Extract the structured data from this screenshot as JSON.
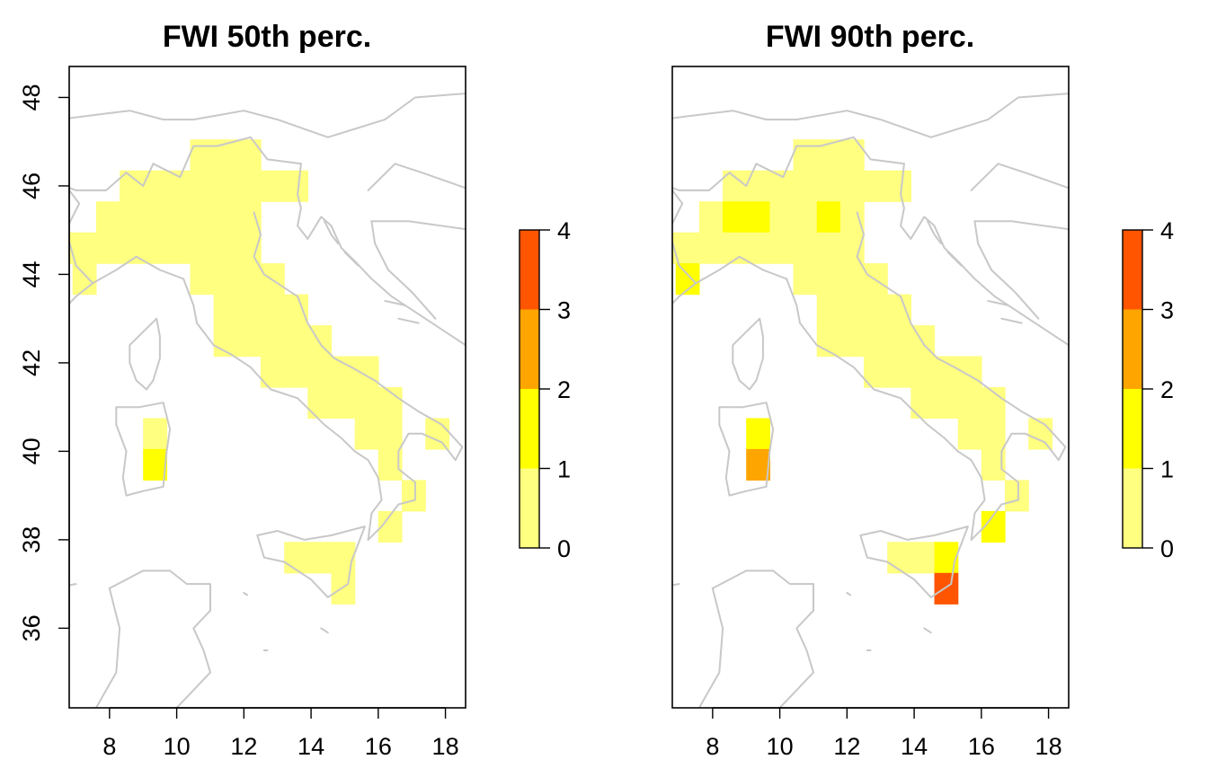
{
  "chart_data": [
    {
      "type": "heatmap",
      "title": "FWI 50th perc.",
      "xlabel": "",
      "ylabel": "",
      "x_ticks": [
        8,
        10,
        12,
        14,
        16,
        18
      ],
      "y_ticks": [
        36,
        38,
        40,
        42,
        44,
        46,
        48
      ],
      "xlim": [
        6.8,
        18.6
      ],
      "ylim": [
        34.2,
        48.7
      ],
      "grid": false,
      "legend": {
        "type": "colorbar",
        "position": "right",
        "breaks": [
          0,
          1,
          2,
          3,
          4
        ],
        "colors": [
          "#ffff80",
          "#ffff00",
          "#ffa500",
          "#ff5500"
        ]
      },
      "cell_size_deg": [
        0.7,
        0.7
      ],
      "cells": [
        [
          6.55,
          44.6,
          0
        ],
        [
          7.25,
          44.6,
          0
        ],
        [
          7.25,
          43.9,
          0
        ],
        [
          7.95,
          45.3,
          0
        ],
        [
          7.95,
          44.6,
          0
        ],
        [
          8.65,
          46.0,
          0
        ],
        [
          8.65,
          45.3,
          0
        ],
        [
          8.65,
          44.6,
          0
        ],
        [
          9.35,
          46.0,
          0
        ],
        [
          9.35,
          45.3,
          0
        ],
        [
          9.35,
          44.6,
          0
        ],
        [
          10.05,
          46.0,
          0
        ],
        [
          10.05,
          45.3,
          0
        ],
        [
          10.05,
          44.6,
          0
        ],
        [
          10.75,
          46.7,
          0
        ],
        [
          10.75,
          46.0,
          0
        ],
        [
          10.75,
          45.3,
          0
        ],
        [
          10.75,
          44.6,
          0
        ],
        [
          10.75,
          43.9,
          0
        ],
        [
          11.45,
          46.7,
          0
        ],
        [
          11.45,
          46.0,
          0
        ],
        [
          11.45,
          45.3,
          0
        ],
        [
          11.45,
          44.6,
          0
        ],
        [
          11.45,
          43.9,
          0
        ],
        [
          11.45,
          43.2,
          0
        ],
        [
          11.45,
          42.5,
          0
        ],
        [
          12.15,
          46.7,
          0
        ],
        [
          12.15,
          46.0,
          0
        ],
        [
          12.15,
          45.3,
          0
        ],
        [
          12.15,
          44.6,
          0
        ],
        [
          12.15,
          43.9,
          0
        ],
        [
          12.15,
          43.2,
          0
        ],
        [
          12.15,
          42.5,
          0
        ],
        [
          12.85,
          46.0,
          0
        ],
        [
          12.85,
          43.9,
          0
        ],
        [
          12.85,
          43.2,
          0
        ],
        [
          12.85,
          42.5,
          0
        ],
        [
          12.85,
          41.8,
          0
        ],
        [
          13.55,
          46.0,
          0
        ],
        [
          13.55,
          43.2,
          0
        ],
        [
          13.55,
          42.5,
          0
        ],
        [
          13.55,
          41.8,
          0
        ],
        [
          14.25,
          42.5,
          0
        ],
        [
          14.25,
          41.8,
          0
        ],
        [
          14.25,
          41.1,
          0
        ],
        [
          14.95,
          41.8,
          0
        ],
        [
          14.95,
          41.1,
          0
        ],
        [
          15.65,
          41.8,
          0
        ],
        [
          15.65,
          41.1,
          0
        ],
        [
          15.65,
          40.4,
          0
        ],
        [
          16.35,
          41.1,
          0
        ],
        [
          16.35,
          40.4,
          0
        ],
        [
          16.35,
          39.7,
          0
        ],
        [
          17.05,
          39.0,
          0
        ],
        [
          16.35,
          38.3,
          0
        ],
        [
          17.75,
          40.4,
          0
        ],
        [
          9.35,
          40.4,
          0
        ],
        [
          9.35,
          39.7,
          1
        ],
        [
          13.55,
          37.6,
          0
        ],
        [
          14.25,
          37.6,
          0
        ],
        [
          14.95,
          37.6,
          0
        ],
        [
          14.95,
          36.9,
          0
        ]
      ]
    },
    {
      "type": "heatmap",
      "title": "FWI 90th perc.",
      "xlabel": "",
      "ylabel": "",
      "x_ticks": [
        8,
        10,
        12,
        14,
        16,
        18
      ],
      "y_ticks": [],
      "xlim": [
        6.8,
        18.6
      ],
      "ylim": [
        34.2,
        48.7
      ],
      "grid": false,
      "legend": {
        "type": "colorbar",
        "position": "right",
        "breaks": [
          0,
          1,
          2,
          3,
          4
        ],
        "colors": [
          "#ffff80",
          "#ffff00",
          "#ffa500",
          "#ff5500"
        ]
      },
      "cell_size_deg": [
        0.7,
        0.7
      ],
      "cells": [
        [
          6.55,
          44.6,
          0
        ],
        [
          7.25,
          44.6,
          0
        ],
        [
          7.25,
          43.9,
          1
        ],
        [
          7.95,
          45.3,
          0
        ],
        [
          7.95,
          44.6,
          0
        ],
        [
          8.65,
          46.0,
          0
        ],
        [
          8.65,
          45.3,
          1
        ],
        [
          8.65,
          44.6,
          0
        ],
        [
          9.35,
          46.0,
          0
        ],
        [
          9.35,
          45.3,
          1
        ],
        [
          9.35,
          44.6,
          0
        ],
        [
          10.05,
          46.0,
          0
        ],
        [
          10.05,
          45.3,
          0
        ],
        [
          10.05,
          44.6,
          0
        ],
        [
          10.75,
          46.7,
          0
        ],
        [
          10.75,
          46.0,
          0
        ],
        [
          10.75,
          45.3,
          0
        ],
        [
          10.75,
          44.6,
          0
        ],
        [
          10.75,
          43.9,
          0
        ],
        [
          11.45,
          46.7,
          0
        ],
        [
          11.45,
          46.0,
          0
        ],
        [
          11.45,
          45.3,
          1
        ],
        [
          11.45,
          44.6,
          0
        ],
        [
          11.45,
          43.9,
          0
        ],
        [
          11.45,
          43.2,
          0
        ],
        [
          11.45,
          42.5,
          0
        ],
        [
          12.15,
          46.7,
          0
        ],
        [
          12.15,
          46.0,
          0
        ],
        [
          12.15,
          45.3,
          0
        ],
        [
          12.15,
          44.6,
          0
        ],
        [
          12.15,
          43.9,
          0
        ],
        [
          12.15,
          43.2,
          0
        ],
        [
          12.15,
          42.5,
          0
        ],
        [
          12.85,
          46.0,
          0
        ],
        [
          12.85,
          43.9,
          0
        ],
        [
          12.85,
          43.2,
          0
        ],
        [
          12.85,
          42.5,
          0
        ],
        [
          12.85,
          41.8,
          0
        ],
        [
          13.55,
          46.0,
          0
        ],
        [
          13.55,
          43.2,
          0
        ],
        [
          13.55,
          42.5,
          0
        ],
        [
          13.55,
          41.8,
          0
        ],
        [
          14.25,
          42.5,
          0
        ],
        [
          14.25,
          41.8,
          0
        ],
        [
          14.25,
          41.1,
          0
        ],
        [
          14.95,
          41.8,
          0
        ],
        [
          14.95,
          41.1,
          0
        ],
        [
          15.65,
          41.8,
          0
        ],
        [
          15.65,
          41.1,
          0
        ],
        [
          15.65,
          40.4,
          0
        ],
        [
          16.35,
          41.1,
          0
        ],
        [
          16.35,
          40.4,
          0
        ],
        [
          16.35,
          39.7,
          0
        ],
        [
          17.05,
          39.0,
          0
        ],
        [
          16.35,
          38.3,
          1
        ],
        [
          17.75,
          40.4,
          0
        ],
        [
          9.35,
          40.4,
          1
        ],
        [
          9.35,
          39.7,
          2
        ],
        [
          13.55,
          37.6,
          0
        ],
        [
          14.25,
          37.6,
          0
        ],
        [
          14.95,
          37.6,
          1
        ],
        [
          14.95,
          36.9,
          3
        ]
      ]
    }
  ]
}
